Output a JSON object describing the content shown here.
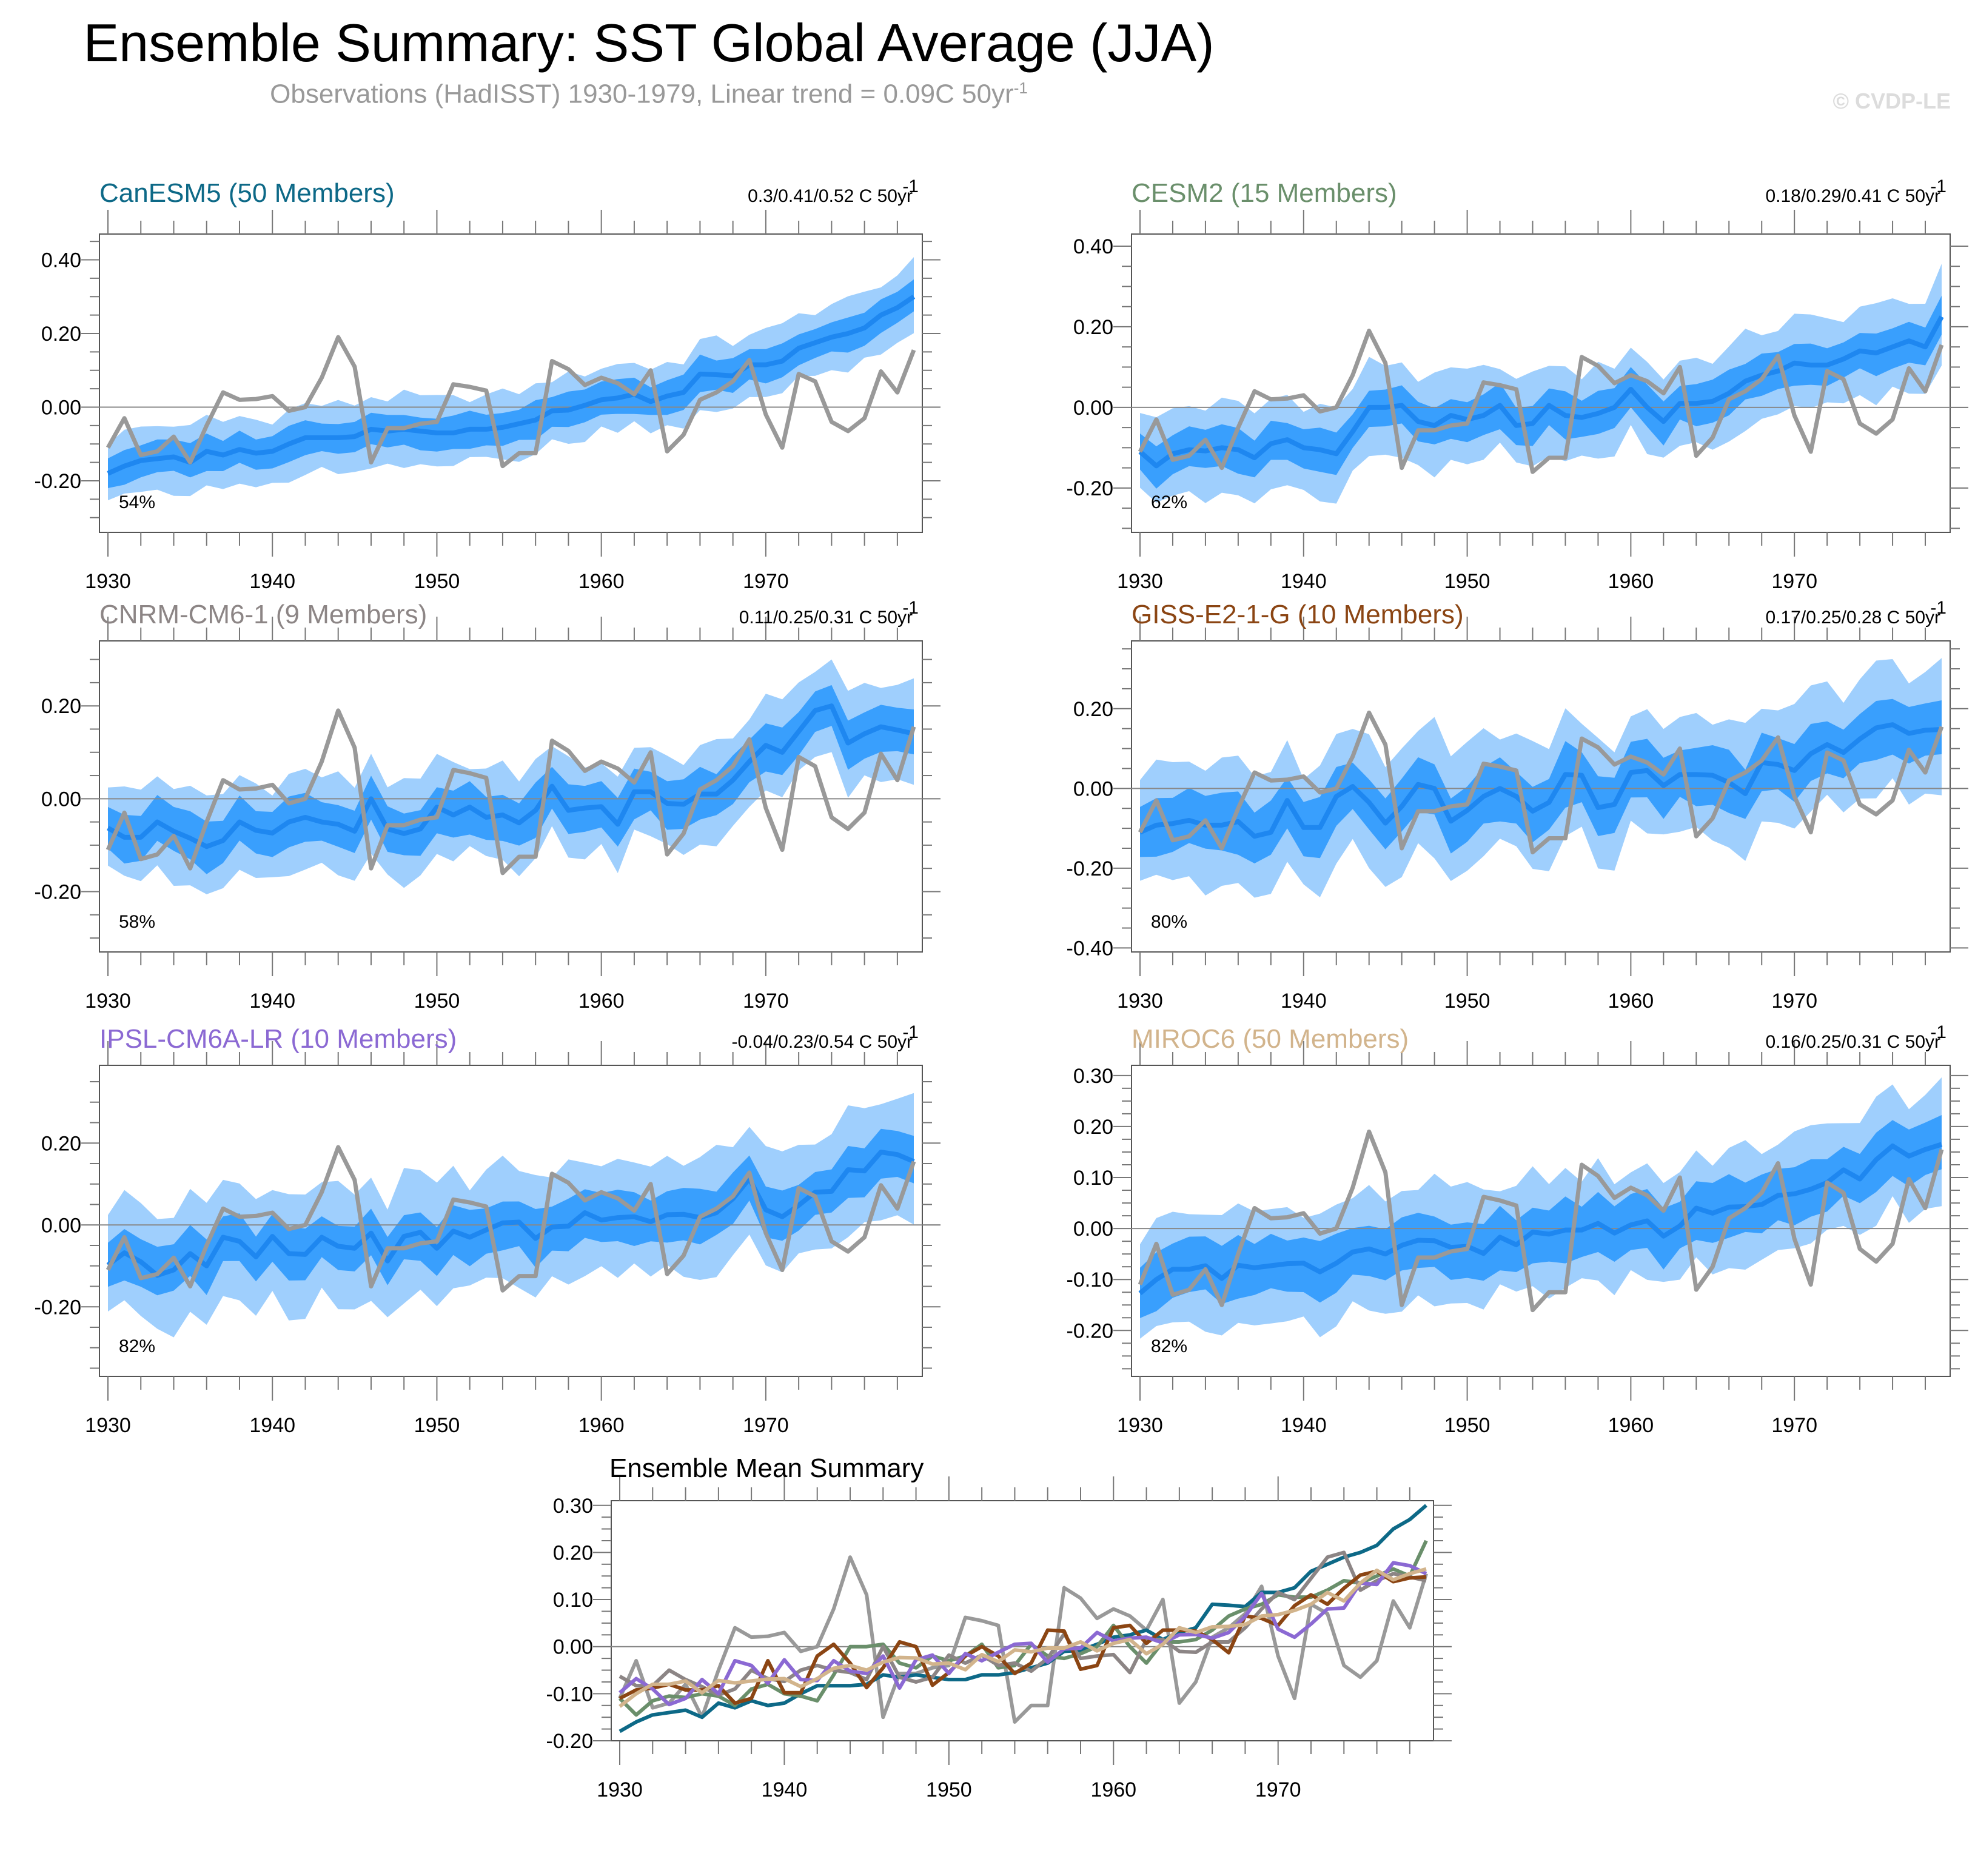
{
  "page": {
    "title": "Ensemble Summary: SST Global Average (JJA)",
    "subtitle": "Observations (HadISST) 1930-1979, Linear trend = 0.09C 50yr",
    "subtitle_sup": "-1",
    "copyright": "© CVDP-LE"
  },
  "colors": {
    "outer_band": "#9fcffd",
    "inner_band": "#399ffd",
    "ens_mean": "#1e87f0",
    "obs": "#999999"
  },
  "chart_data": [
    {
      "type": "area",
      "title": "CanESM5 (50 Members)",
      "title_color": "#0d6987",
      "trend_label": "0.3/0.41/0.52 C 50yr",
      "trend_sup": "-1",
      "percent_label": "54%",
      "xlim": [
        1930,
        1979
      ],
      "ylim": [
        -0.34,
        0.47
      ],
      "yticks": [
        -0.2,
        0.0,
        0.2,
        0.4
      ],
      "ytick_labels": [
        "-0.20",
        "0.00",
        "0.20",
        "0.40"
      ],
      "xticks": [
        1930,
        1940,
        1950,
        1960,
        1970
      ],
      "xtick_labels": [
        "1930",
        "1940",
        "1950",
        "1960",
        "1970"
      ],
      "ens_mean": [
        -0.18,
        -0.16,
        -0.145,
        -0.14,
        -0.135,
        -0.15,
        -0.12,
        -0.13,
        -0.115,
        -0.125,
        -0.12,
        -0.1,
        -0.083,
        -0.083,
        -0.083,
        -0.08,
        -0.06,
        -0.065,
        -0.06,
        -0.065,
        -0.07,
        -0.07,
        -0.06,
        -0.06,
        -0.055,
        -0.045,
        -0.035,
        -0.01,
        -0.008,
        0.005,
        0.02,
        0.025,
        0.035,
        0.015,
        0.03,
        0.04,
        0.09,
        0.088,
        0.085,
        0.115,
        0.115,
        0.125,
        0.16,
        0.175,
        0.19,
        0.2,
        0.215,
        0.25,
        0.27,
        0.3
      ],
      "inner_spread": 0.045,
      "outer_spread": 0.09
    },
    {
      "type": "area",
      "title": "CESM2 (15 Members)",
      "title_color": "#6a8f6b",
      "trend_label": "0.18/0.29/0.41 C 50yr",
      "trend_sup": "-1",
      "percent_label": "62%",
      "xlim": [
        1930,
        1979
      ],
      "ylim": [
        -0.31,
        0.43
      ],
      "yticks": [
        -0.2,
        0.0,
        0.2,
        0.4
      ],
      "ytick_labels": [
        "-0.20",
        "0.00",
        "0.20",
        "0.40"
      ],
      "xticks": [
        1930,
        1940,
        1950,
        1960,
        1970
      ],
      "xtick_labels": [
        "1930",
        "1940",
        "1950",
        "1960",
        "1970"
      ],
      "ens_mean": [
        -0.11,
        -0.145,
        -0.115,
        -0.105,
        -0.108,
        -0.1,
        -0.105,
        -0.125,
        -0.09,
        -0.08,
        -0.1,
        -0.105,
        -0.115,
        -0.06,
        0.0,
        0.0,
        0.005,
        -0.035,
        -0.045,
        -0.02,
        -0.03,
        -0.02,
        0.005,
        -0.045,
        -0.04,
        0.005,
        -0.02,
        -0.025,
        -0.015,
        0.0,
        0.045,
        0.0,
        -0.035,
        0.01,
        0.01,
        0.015,
        0.035,
        0.065,
        0.08,
        0.09,
        0.11,
        0.105,
        0.105,
        0.12,
        0.14,
        0.135,
        0.15,
        0.165,
        0.15,
        0.225
      ],
      "inner_spread": 0.05,
      "outer_spread": 0.11
    },
    {
      "type": "area",
      "title": "CNRM-CM6-1 (9 Members)",
      "title_color": "#8c8585",
      "trend_label": "0.11/0.25/0.31 C 50yr",
      "trend_sup": "-1",
      "percent_label": "58%",
      "xlim": [
        1930,
        1979
      ],
      "ylim": [
        -0.33,
        0.34
      ],
      "yticks": [
        -0.2,
        0.0,
        0.2
      ],
      "ytick_labels": [
        "-0.20",
        "0.00",
        "0.20"
      ],
      "xticks": [
        1930,
        1940,
        1950,
        1960,
        1970
      ],
      "xtick_labels": [
        "1930",
        "1940",
        "1950",
        "1960",
        "1970"
      ],
      "ens_mean": [
        -0.063,
        -0.083,
        -0.083,
        -0.05,
        -0.07,
        -0.085,
        -0.103,
        -0.09,
        -0.05,
        -0.068,
        -0.074,
        -0.05,
        -0.04,
        -0.05,
        -0.055,
        -0.07,
        0.0,
        -0.065,
        -0.075,
        -0.065,
        -0.018,
        -0.035,
        -0.018,
        -0.04,
        -0.035,
        -0.052,
        -0.025,
        0.027,
        -0.025,
        -0.02,
        -0.017,
        -0.055,
        0.015,
        0.015,
        -0.01,
        -0.012,
        0.01,
        0.01,
        0.04,
        0.08,
        0.115,
        0.1,
        0.145,
        0.19,
        0.2,
        0.12,
        0.14,
        0.155,
        0.148,
        0.14
      ],
      "inner_spread": 0.05,
      "outer_spread": 0.1
    },
    {
      "type": "area",
      "title": "GISS-E2-1-G (10 Members)",
      "title_color": "#8b4513",
      "trend_label": "0.17/0.25/0.28 C 50yr",
      "trend_sup": "-1",
      "percent_label": "80%",
      "xlim": [
        1930,
        1979
      ],
      "ylim": [
        -0.41,
        0.37
      ],
      "yticks": [
        -0.4,
        -0.2,
        0.0,
        0.2
      ],
      "ytick_labels": [
        "-0.40",
        "-0.20",
        "0.00",
        "0.20"
      ],
      "xticks": [
        1930,
        1940,
        1950,
        1960,
        1970
      ],
      "xtick_labels": [
        "1930",
        "1940",
        "1950",
        "1960",
        "1970"
      ],
      "ens_mean": [
        -0.11,
        -0.092,
        -0.088,
        -0.08,
        -0.092,
        -0.092,
        -0.083,
        -0.12,
        -0.11,
        -0.03,
        -0.098,
        -0.098,
        -0.02,
        0.005,
        -0.035,
        -0.087,
        -0.045,
        0.01,
        0.0,
        -0.082,
        -0.055,
        -0.02,
        0.0,
        -0.02,
        -0.057,
        -0.035,
        0.035,
        0.033,
        -0.048,
        -0.04,
        0.04,
        0.045,
        0.007,
        0.035,
        0.035,
        0.033,
        0.015,
        -0.013,
        0.065,
        0.06,
        0.045,
        0.087,
        0.11,
        0.09,
        0.124,
        0.152,
        0.16,
        0.138,
        0.146,
        0.148
      ],
      "inner_spread": 0.07,
      "outer_spread": 0.15
    },
    {
      "type": "area",
      "title": "IPSL-CM6A-LR (10 Members)",
      "title_color": "#8b69d3",
      "trend_label": "-0.04/0.23/0.54 C 50yr",
      "trend_sup": "-1",
      "percent_label": "82%",
      "xlim": [
        1930,
        1979
      ],
      "ylim": [
        -0.37,
        0.39
      ],
      "yticks": [
        -0.2,
        0.0,
        0.2
      ],
      "ytick_labels": [
        "-0.20",
        "0.00",
        "0.20"
      ],
      "xticks": [
        1930,
        1940,
        1950,
        1960,
        1970
      ],
      "xtick_labels": [
        "1930",
        "1940",
        "1950",
        "1960",
        "1970"
      ],
      "ens_mean": [
        -0.098,
        -0.068,
        -0.09,
        -0.123,
        -0.11,
        -0.07,
        -0.1,
        -0.03,
        -0.04,
        -0.078,
        -0.028,
        -0.07,
        -0.072,
        -0.03,
        -0.052,
        -0.057,
        -0.02,
        -0.088,
        -0.028,
        -0.018,
        -0.057,
        -0.015,
        -0.03,
        -0.012,
        0.005,
        0.007,
        -0.033,
        -0.005,
        -0.003,
        0.03,
        0.012,
        0.018,
        0.02,
        0.008,
        0.025,
        0.026,
        0.018,
        0.03,
        0.064,
        0.113,
        0.037,
        0.02,
        0.048,
        0.08,
        0.082,
        0.135,
        0.132,
        0.178,
        0.172,
        0.155
      ],
      "inner_spread": 0.06,
      "outer_spread": 0.14
    },
    {
      "type": "area",
      "title": "MIROC6 (50 Members)",
      "title_color": "#d2b48c",
      "trend_label": "0.16/0.25/0.31 C 50yr",
      "trend_sup": "-1",
      "percent_label": "82%",
      "xlim": [
        1930,
        1979
      ],
      "ylim": [
        -0.29,
        0.32
      ],
      "yticks": [
        -0.2,
        -0.1,
        0.0,
        0.1,
        0.2,
        0.3
      ],
      "ytick_labels": [
        "-0.20",
        "-0.10",
        "0.00",
        "0.10",
        "0.20",
        "0.30"
      ],
      "xticks": [
        1930,
        1940,
        1950,
        1960,
        1970
      ],
      "xtick_labels": [
        "1930",
        "1940",
        "1950",
        "1960",
        "1970"
      ],
      "ens_mean": [
        -0.127,
        -0.1,
        -0.08,
        -0.08,
        -0.073,
        -0.098,
        -0.072,
        -0.077,
        -0.073,
        -0.069,
        -0.068,
        -0.085,
        -0.068,
        -0.046,
        -0.04,
        -0.05,
        -0.033,
        -0.023,
        -0.024,
        -0.037,
        -0.035,
        -0.049,
        -0.017,
        -0.032,
        -0.007,
        -0.011,
        -0.003,
        -0.003,
        0.01,
        -0.009,
        0.007,
        0.015,
        -0.015,
        0.005,
        0.04,
        0.03,
        0.042,
        0.043,
        0.047,
        0.065,
        0.068,
        0.077,
        0.09,
        0.115,
        0.097,
        0.135,
        0.162,
        0.142,
        0.155,
        0.165
      ],
      "inner_spread": 0.055,
      "outer_spread": 0.11
    },
    {
      "type": "line",
      "title": "Ensemble Mean Summary",
      "xlim": [
        1930,
        1979
      ],
      "ylim": [
        -0.2,
        0.31
      ],
      "yticks": [
        -0.2,
        -0.1,
        0.0,
        0.1,
        0.2,
        0.3
      ],
      "ytick_labels": [
        "-0.20",
        "-0.10",
        "0.00",
        "0.10",
        "0.20",
        "0.30"
      ],
      "xticks": [
        1930,
        1940,
        1950,
        1960,
        1970
      ],
      "xtick_labels": [
        "1930",
        "1940",
        "1950",
        "1960",
        "1970"
      ],
      "series_ref": [
        "CanESM5",
        "CESM2",
        "CNRM-CM6-1",
        "GISS-E2-1-G",
        "IPSL-CM6A-LR",
        "MIROC6",
        "Observations"
      ]
    }
  ],
  "observations": {
    "name": "Observations (HadISST)",
    "x_start": 1930,
    "values": [
      -0.11,
      -0.03,
      -0.13,
      -0.12,
      -0.08,
      -0.15,
      -0.05,
      0.04,
      0.02,
      0.022,
      0.03,
      -0.01,
      0.0,
      0.08,
      0.19,
      0.11,
      -0.15,
      -0.057,
      -0.057,
      -0.045,
      -0.04,
      0.062,
      0.055,
      0.045,
      -0.16,
      -0.125,
      -0.125,
      0.125,
      0.103,
      0.06,
      0.08,
      0.065,
      0.035,
      0.1,
      -0.12,
      -0.075,
      0.02,
      0.04,
      0.07,
      0.128,
      -0.02,
      -0.11,
      0.09,
      0.07,
      -0.04,
      -0.065,
      -0.03,
      0.097,
      0.04,
      0.155
    ]
  }
}
